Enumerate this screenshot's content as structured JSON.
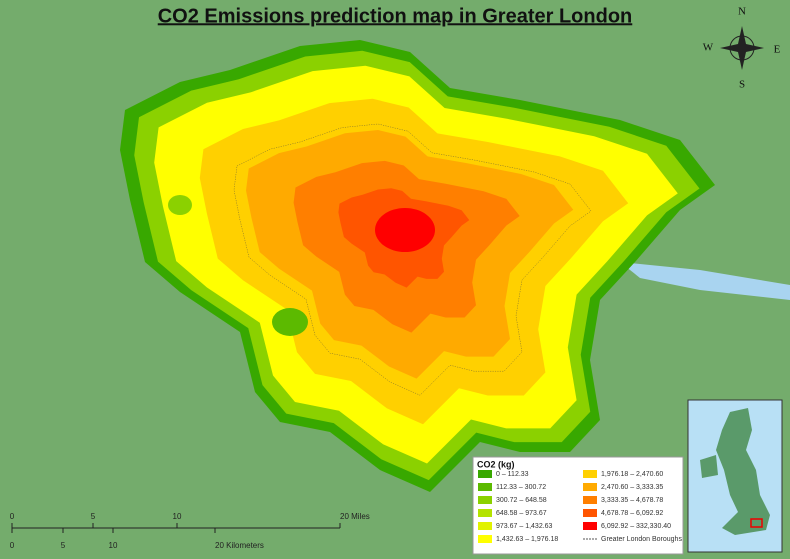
{
  "title": "CO2 Emissions prediction map in Greater London",
  "compass": {
    "n": "N",
    "s": "S",
    "w": "W",
    "e": "E"
  },
  "legend": {
    "title": "CO2 (kg)",
    "items": [
      {
        "label": "0 – 112.33",
        "color": "#38a800"
      },
      {
        "label": "112.33 – 300.72",
        "color": "#5cba00"
      },
      {
        "label": "300.72 – 648.58",
        "color": "#8bd100"
      },
      {
        "label": "648.58 – 973.67",
        "color": "#b4e300"
      },
      {
        "label": "973.67 – 1,432.63",
        "color": "#e1f200"
      },
      {
        "label": "1,432.63 – 1,976.18",
        "color": "#ffff00"
      },
      {
        "label": "1,976.18 – 2,470.60",
        "color": "#ffd000"
      },
      {
        "label": "2,470.60 – 3,333.35",
        "color": "#ffaa00"
      },
      {
        "label": "3,333.35 – 4,678.78",
        "color": "#ff7f00"
      },
      {
        "label": "4,678.78 – 6,092.92",
        "color": "#ff5500"
      },
      {
        "label": "6,092.92 – 332,330.40",
        "color": "#ff0000"
      },
      {
        "label": "Greater London Boroughs",
        "color": "#555555"
      }
    ]
  },
  "scale_bar": {
    "miles": [
      "0",
      "5",
      "10",
      "20 Miles"
    ],
    "kilometers": [
      "0",
      "5",
      "10",
      "20 Kilometers"
    ]
  }
}
